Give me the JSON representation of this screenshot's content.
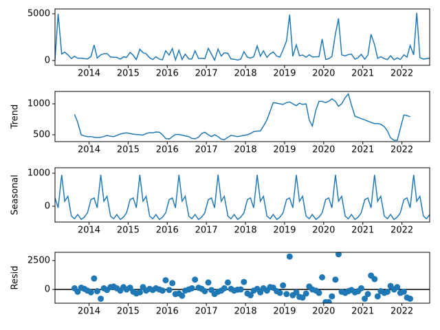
{
  "chart_data": [
    {
      "type": "line",
      "color": "#1f77b4",
      "x": [
        2013.13,
        2013.21,
        2013.3,
        2013.38,
        2013.46,
        2013.55,
        2013.63,
        2013.71,
        2013.8,
        2013.88,
        2013.96,
        2014.05,
        2014.13,
        2014.21,
        2014.3,
        2014.38,
        2014.46,
        2014.55,
        2014.63,
        2014.71,
        2014.8,
        2014.88,
        2014.96,
        2015.05,
        2015.13,
        2015.21,
        2015.3,
        2015.38,
        2015.46,
        2015.55,
        2015.63,
        2015.71,
        2015.8,
        2015.88,
        2015.96,
        2016.05,
        2016.13,
        2016.21,
        2016.3,
        2016.38,
        2016.46,
        2016.55,
        2016.63,
        2016.71,
        2016.8,
        2016.88,
        2016.96,
        2017.05,
        2017.13,
        2017.21,
        2017.3,
        2017.38,
        2017.46,
        2017.55,
        2017.63,
        2017.71,
        2017.8,
        2017.88,
        2017.96,
        2018.05,
        2018.13,
        2018.21,
        2018.3,
        2018.38,
        2018.46,
        2018.55,
        2018.63,
        2018.71,
        2018.8,
        2018.88,
        2018.96,
        2019.05,
        2019.13,
        2019.21,
        2019.3,
        2019.38,
        2019.46,
        2019.55,
        2019.63,
        2019.71,
        2019.8,
        2019.88,
        2019.96,
        2020.05,
        2020.13,
        2020.21,
        2020.3,
        2020.38,
        2020.46,
        2020.55,
        2020.63,
        2020.71,
        2020.8,
        2020.88,
        2020.96,
        2021.05,
        2021.13,
        2021.21,
        2021.3,
        2021.38,
        2021.46,
        2021.55,
        2021.63,
        2021.71,
        2021.8,
        2021.88,
        2021.96,
        2022.05,
        2022.13,
        2022.21,
        2022.3,
        2022.38,
        2022.46,
        2022.55,
        2022.63,
        2022.71
      ],
      "values": [
        100,
        5000,
        700,
        900,
        600,
        200,
        450,
        250,
        250,
        200,
        170,
        420,
        1660,
        255,
        610,
        720,
        740,
        375,
        340,
        340,
        150,
        395,
        330,
        870,
        560,
        105,
        1200,
        845,
        720,
        285,
        100,
        395,
        140,
        70,
        1040,
        580,
        1270,
        55,
        1105,
        95,
        680,
        170,
        160,
        1035,
        210,
        240,
        190,
        1300,
        670,
        50,
        1220,
        480,
        820,
        760,
        160,
        130,
        50,
        150,
        940,
        350,
        270,
        400,
        1560,
        460,
        1040,
        340,
        700,
        920,
        460,
        370,
        1140,
        2100,
        4900,
        450,
        1670,
        510,
        590,
        350,
        610,
        390,
        400,
        410,
        2300,
        120,
        190,
        430,
        2840,
        4500,
        600,
        500,
        630,
        680,
        150,
        300,
        660,
        140,
        570,
        2800,
        1700,
        230,
        400,
        200,
        100,
        500,
        80,
        280,
        100,
        600,
        360,
        1600,
        600,
        5100,
        300,
        150,
        200,
        250
      ],
      "xlim": [
        2013.13,
        2022.71
      ],
      "xticks": [
        2014,
        2015,
        2016,
        2017,
        2018,
        2019,
        2020,
        2021,
        2022
      ],
      "ylim": [
        -515,
        5515
      ],
      "yticks": [
        0,
        5000
      ]
    },
    {
      "type": "line",
      "color": "#1f77b4",
      "ylabel": "Trend",
      "x": [
        2013.13,
        2013.21,
        2013.3,
        2013.38,
        2013.46,
        2013.55,
        2013.63,
        2013.71,
        2013.8,
        2013.88,
        2013.96,
        2014.05,
        2014.13,
        2014.21,
        2014.3,
        2014.38,
        2014.46,
        2014.55,
        2014.63,
        2014.71,
        2014.8,
        2014.88,
        2014.96,
        2015.05,
        2015.13,
        2015.21,
        2015.3,
        2015.38,
        2015.46,
        2015.55,
        2015.63,
        2015.71,
        2015.8,
        2015.88,
        2015.96,
        2016.05,
        2016.13,
        2016.21,
        2016.3,
        2016.38,
        2016.46,
        2016.55,
        2016.63,
        2016.71,
        2016.8,
        2016.88,
        2016.96,
        2017.05,
        2017.13,
        2017.21,
        2017.3,
        2017.38,
        2017.46,
        2017.55,
        2017.63,
        2017.71,
        2017.8,
        2017.88,
        2017.96,
        2018.05,
        2018.13,
        2018.21,
        2018.3,
        2018.38,
        2018.46,
        2018.55,
        2018.63,
        2018.71,
        2018.8,
        2018.88,
        2018.96,
        2019.05,
        2019.13,
        2019.21,
        2019.3,
        2019.38,
        2019.46,
        2019.55,
        2019.63,
        2019.71,
        2019.8,
        2019.88,
        2019.96,
        2020.05,
        2020.13,
        2020.21,
        2020.3,
        2020.38,
        2020.46,
        2020.55,
        2020.63,
        2020.71,
        2020.8,
        2020.88,
        2020.96,
        2021.05,
        2021.13,
        2021.21,
        2021.3,
        2021.38,
        2021.46,
        2021.55,
        2021.63,
        2021.71,
        2021.8,
        2021.88,
        2021.96,
        2022.05,
        2022.13,
        2022.21,
        2022.3,
        2022.38,
        2022.46,
        2022.55,
        2022.63,
        2022.71
      ],
      "values": [
        null,
        null,
        null,
        null,
        null,
        null,
        830,
        700,
        500,
        480,
        470,
        470,
        460,
        455,
        460,
        470,
        490,
        475,
        470,
        490,
        510,
        525,
        530,
        520,
        510,
        505,
        500,
        495,
        520,
        535,
        530,
        545,
        540,
        500,
        440,
        430,
        470,
        505,
        505,
        495,
        480,
        470,
        440,
        435,
        460,
        520,
        540,
        500,
        470,
        500,
        470,
        430,
        420,
        460,
        490,
        480,
        470,
        480,
        490,
        500,
        520,
        550,
        560,
        560,
        640,
        740,
        880,
        1020,
        1010,
        1000,
        990,
        1020,
        1030,
        1000,
        970,
        1010,
        990,
        1000,
        740,
        640,
        900,
        1040,
        1040,
        1020,
        1040,
        1080,
        1040,
        960,
        1000,
        1100,
        1160,
        980,
        800,
        780,
        760,
        740,
        720,
        700,
        680,
        680,
        670,
        630,
        560,
        450,
        410,
        410,
        600,
        820,
        810,
        790,
        null,
        null,
        null,
        null,
        null,
        null
      ],
      "xlim": [
        2013.13,
        2022.71
      ],
      "xticks": [
        2014,
        2015,
        2016,
        2017,
        2018,
        2019,
        2020,
        2021,
        2022
      ],
      "ylim": [
        389,
        1200
      ],
      "yticks": [
        500,
        1000
      ]
    },
    {
      "type": "line",
      "color": "#1f77b4",
      "ylabel": "Seasonal",
      "x": [
        2013.13,
        2013.21,
        2013.3,
        2013.38,
        2013.46,
        2013.55,
        2013.63,
        2013.71,
        2013.8,
        2013.88,
        2013.96,
        2014.05,
        2014.13,
        2014.21,
        2014.3,
        2014.38,
        2014.46,
        2014.55,
        2014.63,
        2014.71,
        2014.8,
        2014.88,
        2014.96,
        2015.05,
        2015.13,
        2015.21,
        2015.3,
        2015.38,
        2015.46,
        2015.55,
        2015.63,
        2015.71,
        2015.8,
        2015.88,
        2015.96,
        2016.05,
        2016.13,
        2016.21,
        2016.3,
        2016.38,
        2016.46,
        2016.55,
        2016.63,
        2016.71,
        2016.8,
        2016.88,
        2016.96,
        2017.05,
        2017.13,
        2017.21,
        2017.3,
        2017.38,
        2017.46,
        2017.55,
        2017.63,
        2017.71,
        2017.8,
        2017.88,
        2017.96,
        2018.05,
        2018.13,
        2018.21,
        2018.3,
        2018.38,
        2018.46,
        2018.55,
        2018.63,
        2018.71,
        2018.8,
        2018.88,
        2018.96,
        2019.05,
        2019.13,
        2019.21,
        2019.3,
        2019.38,
        2019.46,
        2019.55,
        2019.63,
        2019.71,
        2019.8,
        2019.88,
        2019.96,
        2020.05,
        2020.13,
        2020.21,
        2020.3,
        2020.38,
        2020.46,
        2020.55,
        2020.63,
        2020.71,
        2020.8,
        2020.88,
        2020.96,
        2021.05,
        2021.13,
        2021.21,
        2021.3,
        2021.38,
        2021.46,
        2021.55,
        2021.63,
        2021.71,
        2021.8,
        2021.88,
        2021.96,
        2022.05,
        2022.13,
        2022.21,
        2022.3,
        2022.38,
        2022.46,
        2022.55,
        2022.63,
        2022.71
      ],
      "values": [
        250,
        -50,
        950,
        150,
        300,
        -300,
        -380,
        -250,
        -400,
        -330,
        -200,
        200,
        250,
        -50,
        950,
        150,
        300,
        -300,
        -380,
        -250,
        -400,
        -330,
        -200,
        200,
        250,
        -50,
        950,
        150,
        300,
        -300,
        -380,
        -250,
        -400,
        -330,
        -200,
        200,
        250,
        -50,
        950,
        150,
        300,
        -300,
        -380,
        -250,
        -400,
        -330,
        -200,
        200,
        250,
        -50,
        950,
        150,
        300,
        -300,
        -380,
        -250,
        -400,
        -330,
        -200,
        200,
        250,
        -50,
        950,
        150,
        300,
        -300,
        -380,
        -250,
        -400,
        -330,
        -200,
        200,
        250,
        -50,
        950,
        150,
        300,
        -300,
        -380,
        -250,
        -400,
        -330,
        -200,
        200,
        250,
        -50,
        950,
        150,
        300,
        -300,
        -380,
        -250,
        -400,
        -330,
        -200,
        200,
        250,
        -50,
        950,
        150,
        300,
        -300,
        -380,
        -250,
        -400,
        -330,
        -200,
        200,
        250,
        -50,
        950,
        150,
        300,
        -300,
        -380,
        -250
      ],
      "xlim": [
        2013.13,
        2022.71
      ],
      "xticks": [
        2014,
        2015,
        2016,
        2017,
        2018,
        2019,
        2020,
        2021,
        2022
      ],
      "ylim": [
        -480,
        1165
      ],
      "yticks": [
        0,
        1000
      ]
    },
    {
      "type": "scatter",
      "color": "#1f77b4",
      "ylabel": "Resid",
      "x": [
        2013.13,
        2013.21,
        2013.3,
        2013.38,
        2013.46,
        2013.55,
        2013.63,
        2013.71,
        2013.8,
        2013.88,
        2013.96,
        2014.05,
        2014.13,
        2014.21,
        2014.3,
        2014.38,
        2014.46,
        2014.55,
        2014.63,
        2014.71,
        2014.8,
        2014.88,
        2014.96,
        2015.05,
        2015.13,
        2015.21,
        2015.3,
        2015.38,
        2015.46,
        2015.55,
        2015.63,
        2015.71,
        2015.8,
        2015.88,
        2015.96,
        2016.05,
        2016.13,
        2016.21,
        2016.3,
        2016.38,
        2016.46,
        2016.55,
        2016.63,
        2016.71,
        2016.8,
        2016.88,
        2016.96,
        2017.05,
        2017.13,
        2017.21,
        2017.3,
        2017.38,
        2017.46,
        2017.55,
        2017.63,
        2017.71,
        2017.8,
        2017.88,
        2017.96,
        2018.05,
        2018.13,
        2018.21,
        2018.3,
        2018.38,
        2018.46,
        2018.55,
        2018.63,
        2018.71,
        2018.8,
        2018.88,
        2018.96,
        2019.05,
        2019.13,
        2019.21,
        2019.3,
        2019.38,
        2019.46,
        2019.55,
        2019.63,
        2019.71,
        2019.8,
        2019.88,
        2019.96,
        2020.05,
        2020.13,
        2020.21,
        2020.3,
        2020.38,
        2020.46,
        2020.55,
        2020.63,
        2020.71,
        2020.8,
        2020.88,
        2020.96,
        2021.05,
        2021.13,
        2021.21,
        2021.3,
        2021.38,
        2021.46,
        2021.55,
        2021.63,
        2021.71,
        2021.8,
        2021.88,
        2021.96,
        2022.05,
        2022.13,
        2022.21,
        2022.3,
        2022.38,
        2022.46,
        2022.55,
        2022.63,
        2022.71
      ],
      "values": [
        null,
        null,
        null,
        null,
        null,
        null,
        100,
        -200,
        150,
        50,
        -100,
        -250,
        950,
        -150,
        -800,
        100,
        -50,
        200,
        250,
        100,
        -100,
        200,
        0,
        150,
        -200,
        -350,
        -250,
        200,
        -100,
        50,
        -50,
        100,
        0,
        -100,
        800,
        -50,
        550,
        -400,
        -350,
        -550,
        -100,
        0,
        100,
        850,
        150,
        50,
        -150,
        600,
        -50,
        -400,
        -200,
        -100,
        100,
        600,
        50,
        -100,
        -20,
        0,
        650,
        -350,
        -500,
        -100,
        50,
        -250,
        100,
        -100,
        200,
        150,
        -150,
        -300,
        350,
        -400,
        2850,
        -500,
        -250,
        -650,
        -700,
        -350,
        250,
        0,
        -100,
        -300,
        1050,
        -1100,
        -1100,
        -600,
        850,
        3050,
        -200,
        -300,
        -150,
        -50,
        -250,
        -150,
        100,
        -800,
        -400,
        1200,
        900,
        -600,
        -150,
        -300,
        -200,
        300,
        0,
        200,
        -300,
        -200,
        -700,
        -800,
        null,
        null,
        null,
        null,
        null,
        null
      ],
      "xlim": [
        2013.13,
        2022.71
      ],
      "xticks": [
        2014,
        2015,
        2016,
        2017,
        2018,
        2019,
        2020,
        2021,
        2022
      ],
      "ylim": [
        -1190,
        3215
      ],
      "yticks": [
        0,
        2500
      ]
    }
  ]
}
